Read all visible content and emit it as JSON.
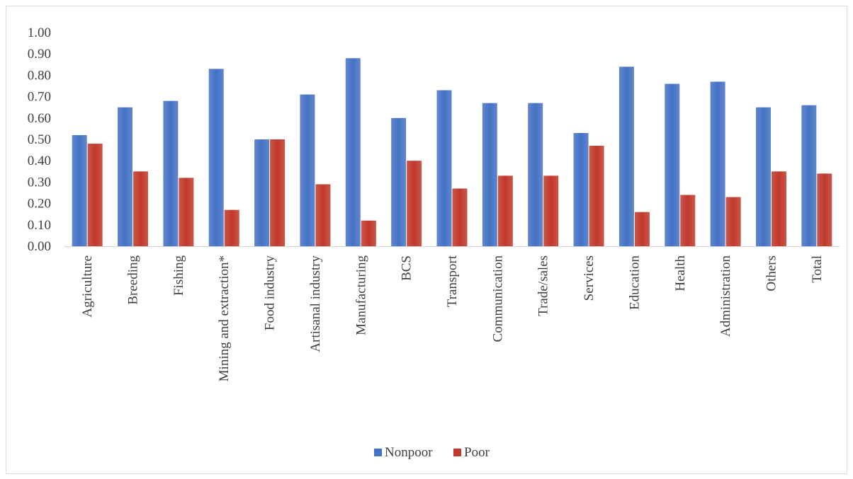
{
  "chart_data": {
    "type": "bar",
    "title": "",
    "xlabel": "",
    "ylabel": "",
    "ylim": [
      0,
      1.0
    ],
    "yticks": [
      "0.00",
      "0.10",
      "0.20",
      "0.30",
      "0.40",
      "0.50",
      "0.60",
      "0.70",
      "0.80",
      "0.90",
      "1.00"
    ],
    "grid": false,
    "legend_position": "bottom",
    "categories": [
      "Agriculture",
      "Breeding",
      "Fishing",
      "Mining and extraction*",
      "Food industry",
      "Artisanal industry",
      "Manufacturing",
      "BCS",
      "Transport",
      "Communication",
      "Trade/sales",
      "Services",
      "Education",
      "Health",
      "Administration",
      "Others",
      "Total"
    ],
    "series": [
      {
        "name": "Nonpoor",
        "color": "#4472c4",
        "values": [
          0.52,
          0.65,
          0.68,
          0.83,
          0.5,
          0.71,
          0.88,
          0.6,
          0.73,
          0.67,
          0.67,
          0.53,
          0.84,
          0.76,
          0.77,
          0.65,
          0.66
        ]
      },
      {
        "name": "Poor",
        "color": "#c0392b",
        "values": [
          0.48,
          0.35,
          0.32,
          0.17,
          0.5,
          0.29,
          0.12,
          0.4,
          0.27,
          0.33,
          0.33,
          0.47,
          0.16,
          0.24,
          0.23,
          0.35,
          0.34
        ]
      }
    ]
  }
}
